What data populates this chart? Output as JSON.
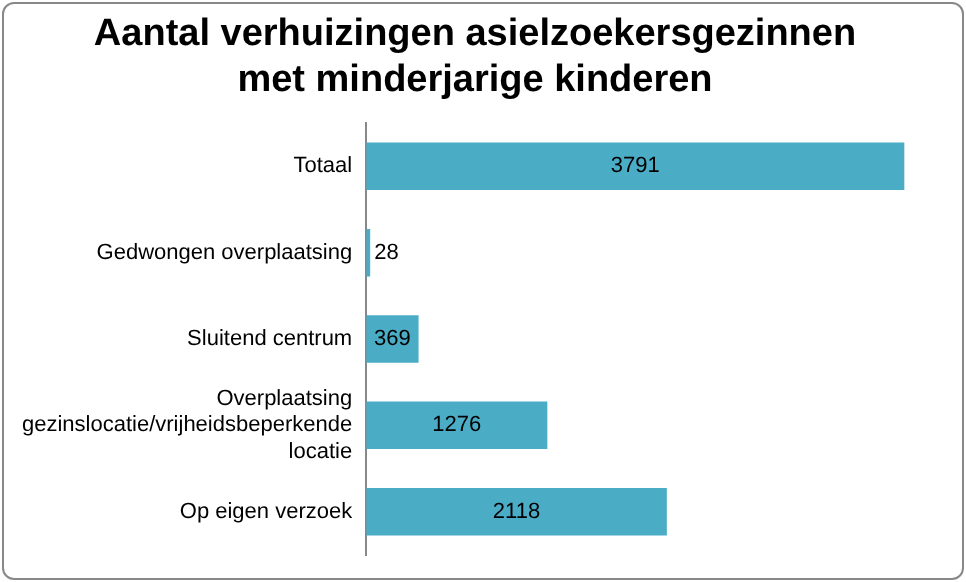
{
  "chart_data": {
    "type": "bar",
    "orientation": "horizontal",
    "title": "Aantal verhuizingen asielzoekersgezinnen met minderjarige kinderen",
    "categories": [
      "Totaal",
      "Gedwongen overplaatsing",
      "Sluitend centrum",
      "Overplaatsing gezinslocatie/vrijheidsbeperkende locatie",
      "Op eigen verzoek"
    ],
    "values": [
      3791,
      28,
      369,
      1276,
      2118
    ],
    "color": "#4bacc6",
    "data_labels": true,
    "grid": false,
    "legend": false
  }
}
